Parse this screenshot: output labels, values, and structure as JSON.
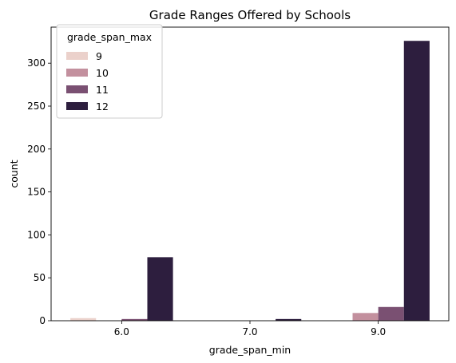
{
  "chart_data": {
    "type": "bar",
    "title": "Grade Ranges Offered by Schools",
    "xlabel": "grade_span_min",
    "ylabel": "count",
    "categories": [
      "6.0",
      "7.0",
      "9.0"
    ],
    "ylim": [
      0,
      342
    ],
    "yticks": [
      0,
      50,
      100,
      150,
      200,
      250,
      300
    ],
    "grid": false,
    "legend": {
      "title": "grade_span_max",
      "position": "top-left"
    },
    "series": [
      {
        "name": "9",
        "color": "#ebd1cb",
        "values": [
          3,
          0,
          0
        ]
      },
      {
        "name": "10",
        "color": "#c3909e",
        "values": [
          0,
          0,
          9
        ]
      },
      {
        "name": "11",
        "color": "#7a5072",
        "values": [
          2,
          0,
          16
        ]
      },
      {
        "name": "12",
        "color": "#2d1e3e",
        "values": [
          74,
          2,
          326
        ]
      }
    ]
  }
}
